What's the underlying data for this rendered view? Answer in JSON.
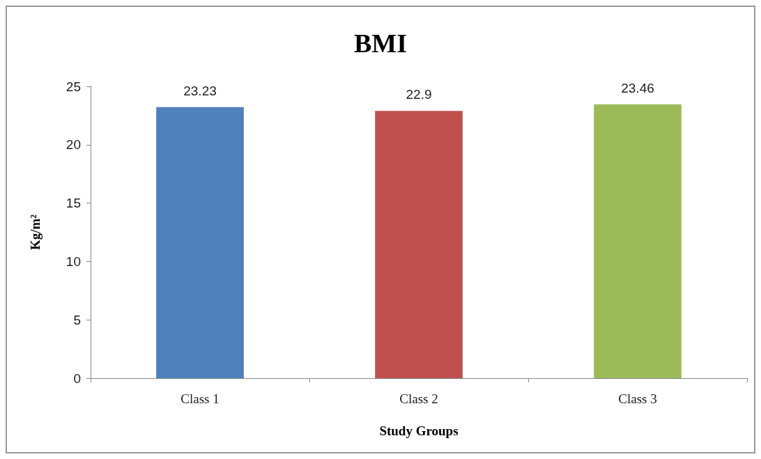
{
  "chart_data": {
    "type": "bar",
    "title": "BMI",
    "xlabel": "Study Groups",
    "ylabel": "Kg/m²",
    "categories": [
      "Class 1",
      "Class 2",
      "Class 3"
    ],
    "values": [
      23.23,
      22.9,
      23.46
    ],
    "colors": [
      "#4f81bd",
      "#c0504d",
      "#9bbb59"
    ],
    "ylim": [
      0,
      25
    ],
    "yticks": [
      0,
      5,
      10,
      15,
      20,
      25
    ],
    "grid": false,
    "data_labels": true
  }
}
